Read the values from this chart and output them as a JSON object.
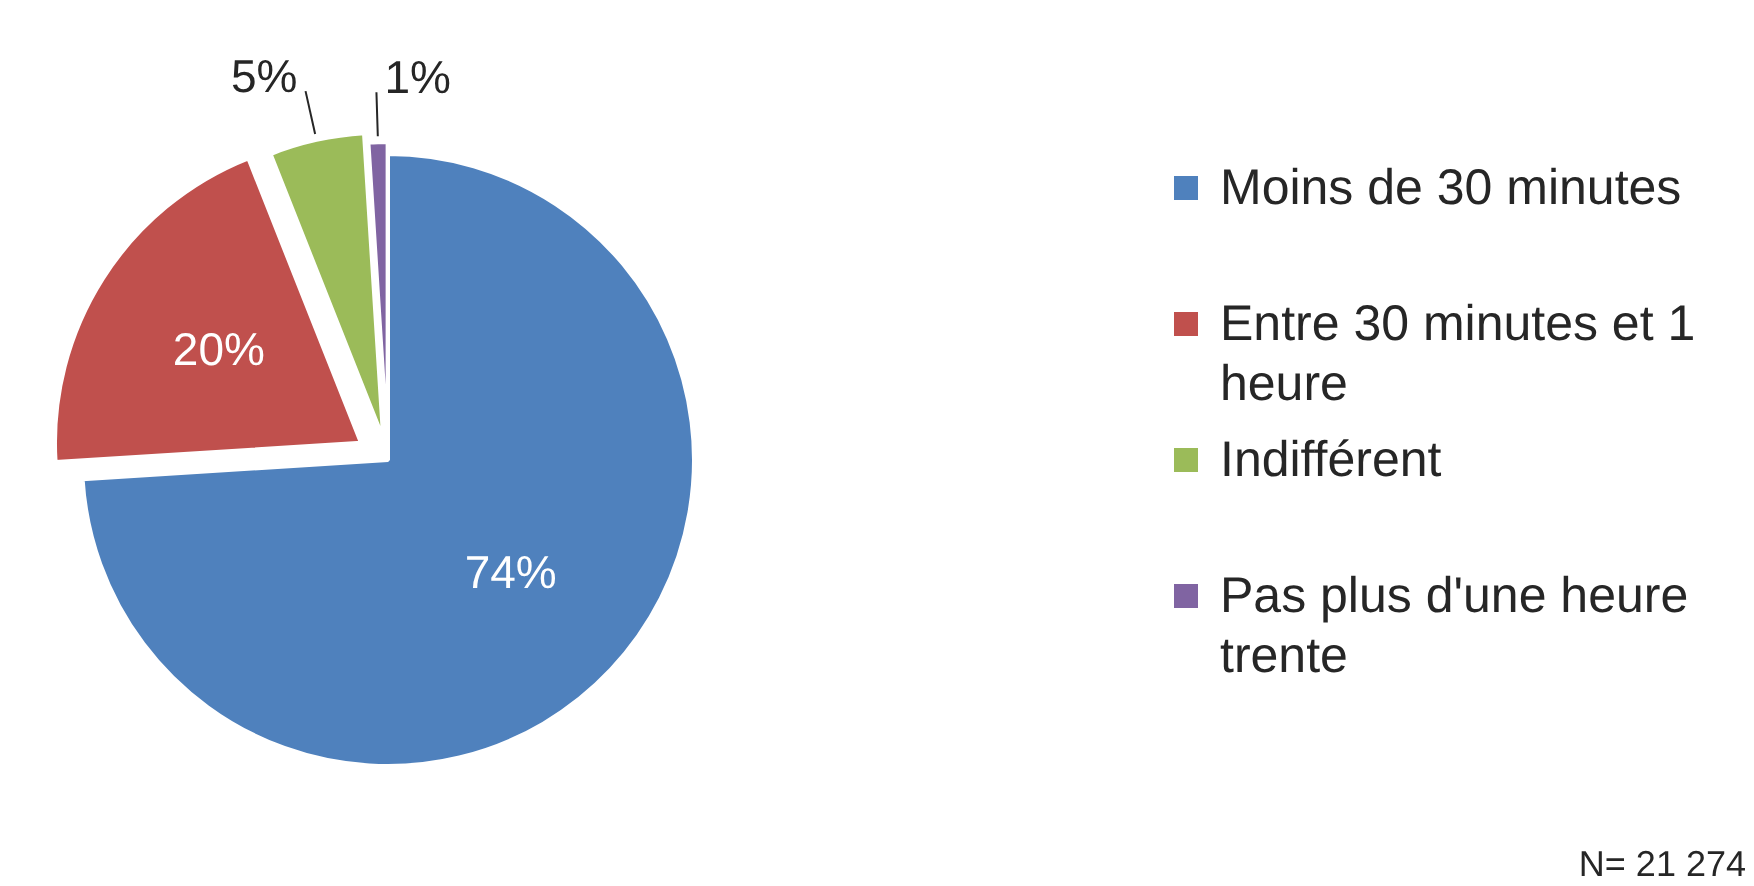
{
  "chart_data": {
    "type": "pie",
    "categories": [
      "Moins de 30 minutes",
      "Entre 30 minutes et 1 heure",
      "Indifférent",
      "Pas plus d'une heure trente"
    ],
    "values": [
      74,
      20,
      5,
      1
    ],
    "colors": [
      "#4f81bd",
      "#c0504d",
      "#9bbb59",
      "#8064a2"
    ],
    "value_labels": [
      "74%",
      "20%",
      "5%",
      "1%"
    ],
    "legend": "right",
    "annotations": [
      "N= 21 274"
    ]
  }
}
